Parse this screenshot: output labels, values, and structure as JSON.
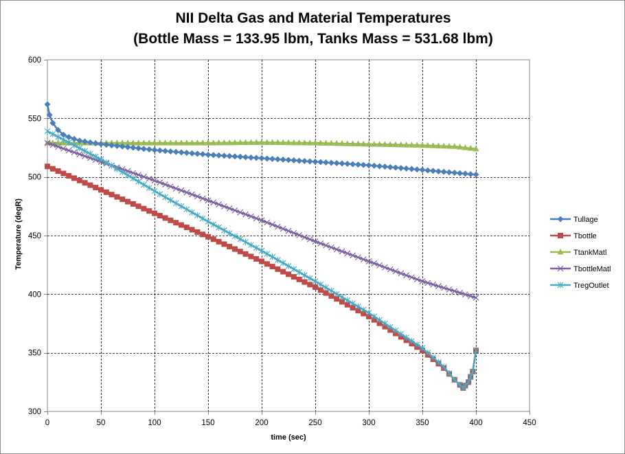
{
  "chart_data": {
    "type": "line",
    "title": "NII Delta Gas and Material Temperatures",
    "subtitle": "(Bottle  Mass = 133.95 lbm,  Tanks Mass = 531.68 lbm)",
    "xlabel": "time (sec)",
    "ylabel": "Temperature (degR)",
    "xlim": [
      0,
      450
    ],
    "ylim": [
      300,
      600
    ],
    "xticks": [
      0,
      50,
      100,
      150,
      200,
      250,
      300,
      350,
      400,
      450
    ],
    "yticks": [
      300,
      350,
      400,
      450,
      500,
      550,
      600
    ],
    "grid": true,
    "legend_position": "right",
    "x": [
      0,
      50,
      100,
      150,
      200,
      250,
      300,
      350,
      370,
      380,
      388,
      393,
      397,
      400
    ],
    "series": [
      {
        "name": "Tullage",
        "color": "#4a7ebb",
        "marker": "diamond",
        "x": [
          0,
          2,
          5,
          10,
          15,
          20,
          30,
          50,
          100,
          150,
          200,
          250,
          300,
          350,
          400
        ],
        "values": [
          562,
          553,
          546,
          540,
          536,
          534,
          531,
          528,
          523,
          519,
          516,
          513,
          510,
          506,
          502
        ]
      },
      {
        "name": "Tbottle",
        "color": "#be4b48",
        "marker": "square",
        "x": [
          0,
          50,
          100,
          150,
          200,
          250,
          300,
          350,
          370,
          380,
          388,
          393,
          397,
          400
        ],
        "values": [
          509,
          489,
          469,
          449,
          428,
          406,
          381,
          352,
          337,
          327,
          320,
          325,
          334,
          352
        ]
      },
      {
        "name": "TtankMatl",
        "color": "#98b954",
        "marker": "triangle",
        "x": [
          0,
          2,
          10,
          50,
          100,
          150,
          200,
          250,
          300,
          350,
          380,
          400
        ],
        "values": [
          529,
          529,
          529,
          529,
          529,
          529,
          529.5,
          529,
          528,
          527,
          526,
          524
        ]
      },
      {
        "name": "TbottleMatl",
        "color": "#7d60a0",
        "marker": "x",
        "x": [
          0,
          50,
          100,
          150,
          200,
          250,
          300,
          350,
          400
        ],
        "values": [
          529,
          513,
          497,
          480,
          463,
          445,
          428,
          411,
          397
        ]
      },
      {
        "name": "TregOutlet",
        "color": "#46aac5",
        "marker": "star",
        "x": [
          0,
          50,
          100,
          150,
          200,
          250,
          300,
          350,
          370,
          380,
          388,
          393,
          397,
          400
        ],
        "values": [
          539,
          515,
          488,
          462,
          437,
          411,
          384,
          354,
          338,
          327,
          320,
          325,
          334,
          352
        ]
      }
    ]
  }
}
